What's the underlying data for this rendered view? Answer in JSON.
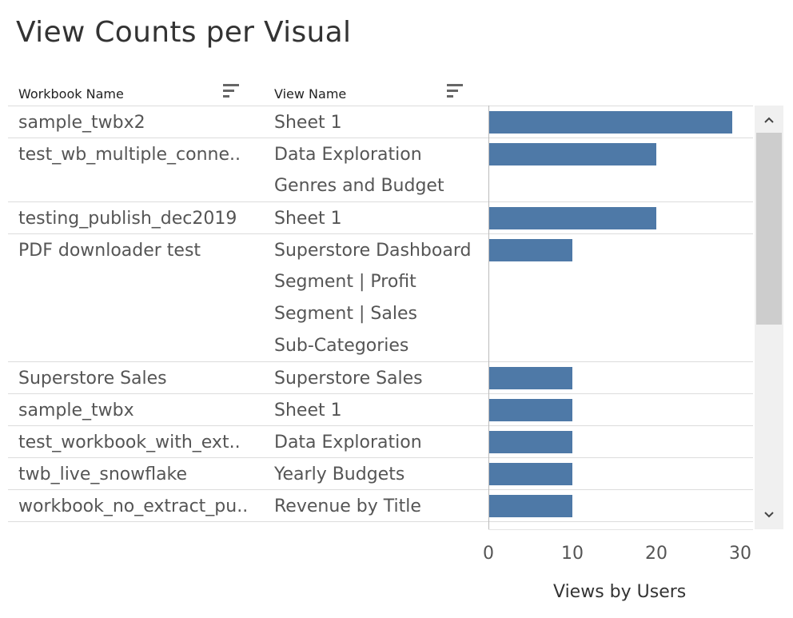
{
  "title": "View Counts per Visual",
  "columns": {
    "workbook": "Workbook Name",
    "view": "View Name"
  },
  "rows": [
    {
      "workbook": "sample_twbx2",
      "view": "Sheet 1",
      "views": 29
    },
    {
      "workbook": "test_wb_multiple_conne..",
      "view": "Data Exploration",
      "views": 20
    },
    {
      "workbook": "",
      "view": "Genres and Budget",
      "views": 0
    },
    {
      "workbook": "testing_publish_dec2019",
      "view": "Sheet 1",
      "views": 20
    },
    {
      "workbook": "PDF downloader test",
      "view": "Superstore Dashboard",
      "views": 10
    },
    {
      "workbook": "",
      "view": "Segment | Profit",
      "views": 0
    },
    {
      "workbook": "",
      "view": "Segment | Sales",
      "views": 0
    },
    {
      "workbook": "",
      "view": "Sub-Categories",
      "views": 0
    },
    {
      "workbook": "Superstore Sales",
      "view": "Superstore Sales",
      "views": 10
    },
    {
      "workbook": "sample_twbx",
      "view": "Sheet 1",
      "views": 10
    },
    {
      "workbook": "test_workbook_with_ext..",
      "view": "Data Exploration",
      "views": 10
    },
    {
      "workbook": "twb_live_snowflake",
      "view": "Yearly Budgets",
      "views": 10
    },
    {
      "workbook": "workbook_no_extract_pu..",
      "view": "Revenue by Title",
      "views": 10
    }
  ],
  "chart_data": {
    "type": "bar",
    "orientation": "horizontal",
    "categories": [
      "sample_twbx2 | Sheet 1",
      "test_wb_multiple_conne.. | Data Exploration",
      "test_wb_multiple_conne.. | Genres and Budget",
      "testing_publish_dec2019 | Sheet 1",
      "PDF downloader test | Superstore Dashboard",
      "PDF downloader test | Segment | Profit",
      "PDF downloader test | Segment | Sales",
      "PDF downloader test | Sub-Categories",
      "Superstore Sales | Superstore Sales",
      "sample_twbx | Sheet 1",
      "test_workbook_with_ext.. | Data Exploration",
      "twb_live_snowflake | Yearly Budgets",
      "workbook_no_extract_pu.. | Revenue by Title"
    ],
    "values": [
      29,
      20,
      0,
      20,
      10,
      0,
      0,
      0,
      10,
      10,
      10,
      10,
      10
    ],
    "title": "View Counts per Visual",
    "xlabel": "Views by Users",
    "ylabel": "",
    "xlim": [
      0,
      31
    ],
    "ticks": [
      "0",
      "10",
      "20",
      "30"
    ],
    "tick_values": [
      0,
      10,
      20,
      30
    ],
    "bar_color": "#4e79a7"
  },
  "scrollbar": {
    "up_icon": "chevron-up-icon",
    "down_icon": "chevron-down-icon"
  }
}
